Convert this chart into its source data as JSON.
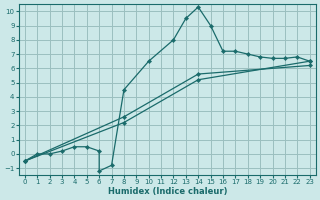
{
  "xlabel": "Humidex (Indice chaleur)",
  "bg_color": "#cce8e8",
  "grid_color": "#9bbfbf",
  "line_color": "#1a6b6b",
  "xlim": [
    -0.5,
    23.5
  ],
  "ylim": [
    -1.5,
    10.5
  ],
  "xticks": [
    0,
    1,
    2,
    3,
    4,
    5,
    6,
    7,
    8,
    9,
    10,
    11,
    12,
    13,
    14,
    15,
    16,
    17,
    18,
    19,
    20,
    21,
    22,
    23
  ],
  "yticks": [
    -1,
    0,
    1,
    2,
    3,
    4,
    5,
    6,
    7,
    8,
    9,
    10
  ],
  "line1_x": [
    0,
    1,
    2,
    3,
    4,
    5,
    6,
    6,
    7,
    8,
    10,
    12,
    13,
    14,
    15,
    16,
    17,
    18,
    19,
    20,
    21,
    22,
    23
  ],
  "line1_y": [
    -0.5,
    0.0,
    0.0,
    0.2,
    0.5,
    0.5,
    0.2,
    -1.2,
    -0.8,
    4.5,
    6.5,
    8.0,
    9.5,
    10.3,
    9.0,
    7.2,
    7.2,
    7.0,
    6.8,
    6.7,
    6.7,
    6.8,
    6.5
  ],
  "line2_x": [
    0,
    8,
    14,
    23
  ],
  "line2_y": [
    -0.5,
    2.2,
    5.2,
    6.5
  ],
  "line3_x": [
    0,
    8,
    14,
    23
  ],
  "line3_y": [
    -0.5,
    2.6,
    5.6,
    6.2
  ]
}
